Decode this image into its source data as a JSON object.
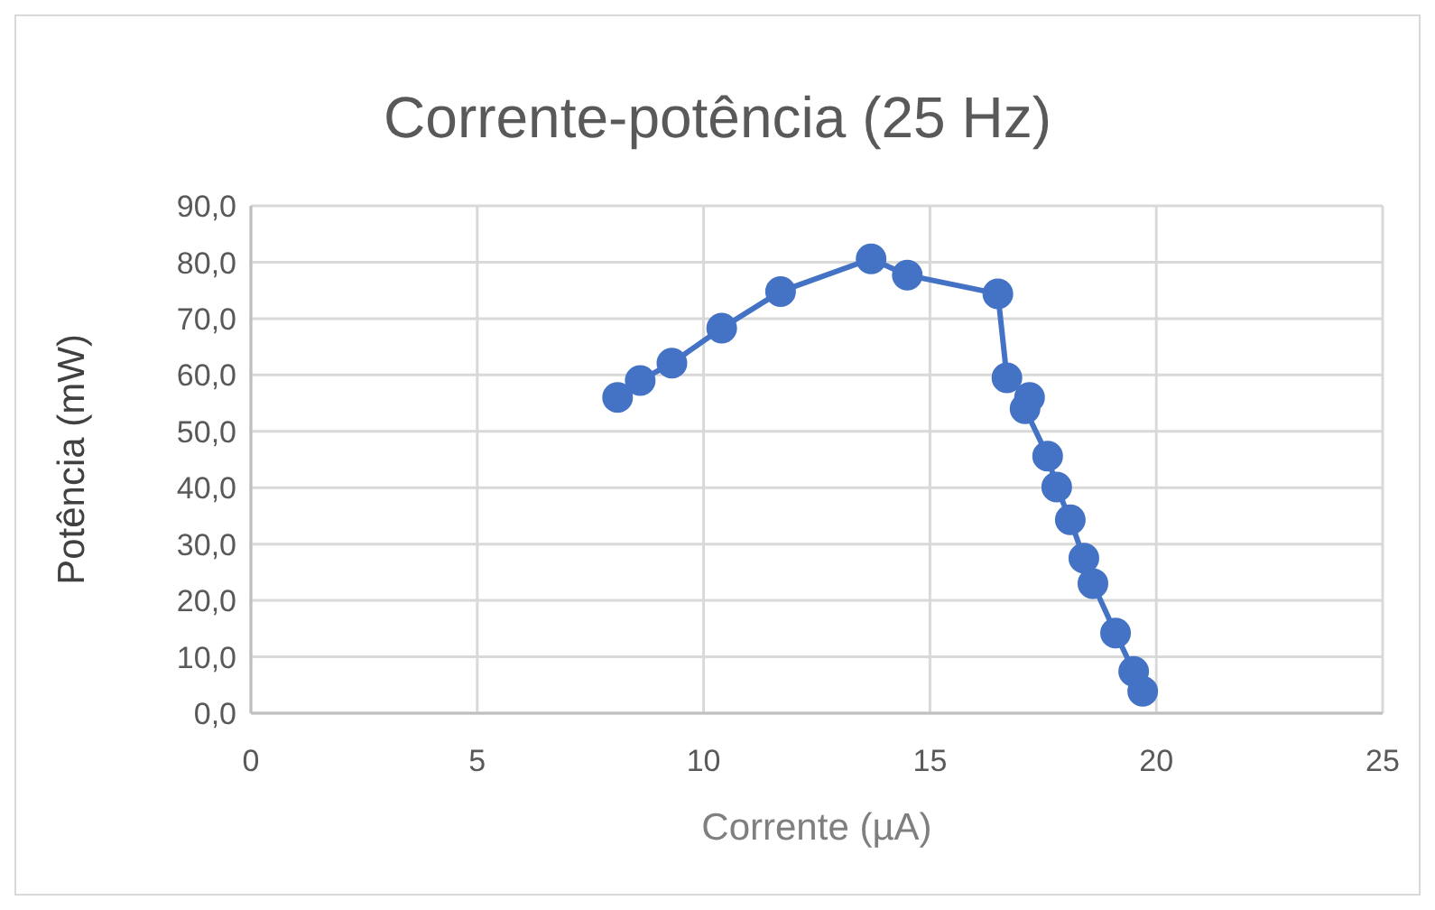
{
  "chart_data": {
    "type": "line",
    "title": "Corrente-potência (25 Hz)",
    "xlabel": "Corrente (µA)",
    "ylabel": "Potência (mW)",
    "x": [
      8.1,
      8.6,
      9.3,
      10.4,
      11.7,
      13.7,
      14.5,
      16.5,
      16.7,
      17.2,
      17.1,
      17.6,
      17.8,
      18.1,
      18.4,
      18.6,
      19.1,
      19.5,
      19.7
    ],
    "series": [
      {
        "color": "#4472c4",
        "values": [
          56.0,
          59.0,
          62.1,
          68.3,
          74.8,
          80.6,
          77.7,
          74.4,
          59.5,
          56.0,
          54.0,
          45.6,
          40.1,
          34.3,
          27.5,
          23.0,
          14.2,
          7.4,
          3.9
        ]
      }
    ],
    "xlim": [
      0,
      25
    ],
    "xticks": [
      0,
      5,
      10,
      15,
      20,
      25
    ],
    "ylim": [
      0,
      90
    ],
    "yticks": [
      {
        "value": 0,
        "label": "0,0"
      },
      {
        "value": 10,
        "label": "10,0"
      },
      {
        "value": 20,
        "label": "20,0"
      },
      {
        "value": 30,
        "label": "30,0"
      },
      {
        "value": 40,
        "label": "40,0"
      },
      {
        "value": 50,
        "label": "50,0"
      },
      {
        "value": 60,
        "label": "60,0"
      },
      {
        "value": 70,
        "label": "70,0"
      },
      {
        "value": 80,
        "label": "80,0"
      },
      {
        "value": 90,
        "label": "90,0"
      }
    ],
    "grid": true,
    "legend": false,
    "marker": "circle",
    "line_style": "solid"
  }
}
